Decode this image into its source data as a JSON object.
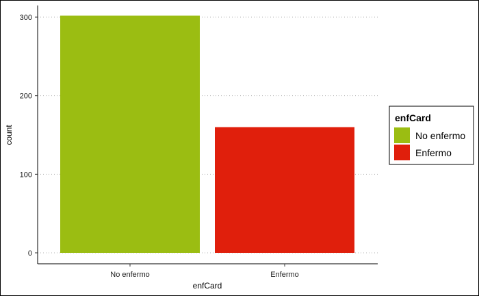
{
  "chart_data": {
    "type": "bar",
    "title": "",
    "xlabel": "enfCard",
    "ylabel": "count",
    "categories": [
      "No enfermo",
      "Enfermo"
    ],
    "values": [
      302,
      160
    ],
    "colors": [
      "#9bbd12",
      "#e01f0c"
    ],
    "ylim": [
      0,
      320
    ],
    "yticks": [
      0,
      100,
      200,
      300
    ],
    "grid": "horizontal dotted",
    "legend": {
      "title": "enfCard",
      "placement": "right",
      "items": [
        {
          "label": "No enfermo",
          "color": "#9bbd12"
        },
        {
          "label": "Enfermo",
          "color": "#e01f0c"
        }
      ]
    }
  }
}
